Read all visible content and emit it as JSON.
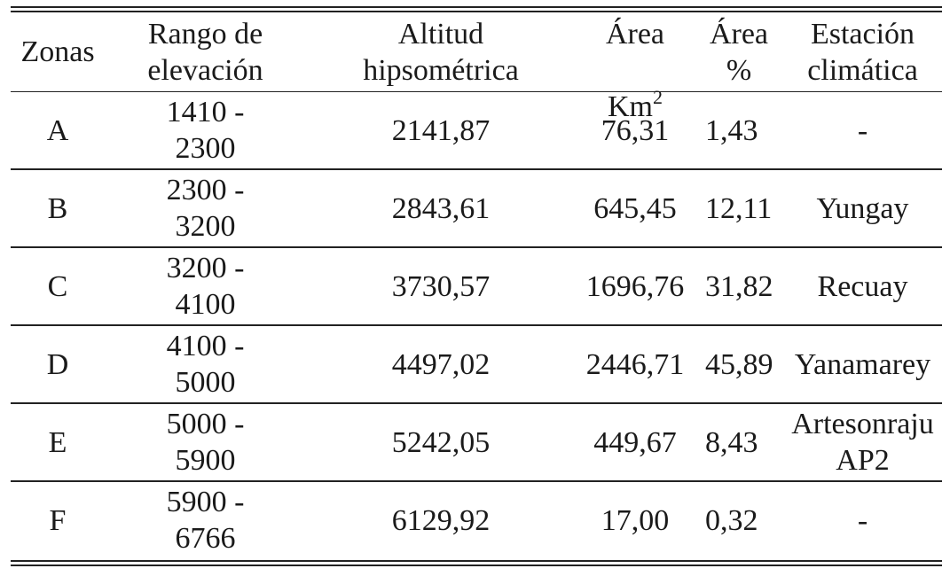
{
  "table": {
    "headers": {
      "zonas": "Zonas",
      "rango": "Rango de\nelevación",
      "altitud": "Altitud\nhipsométrica",
      "area_line1": "Área",
      "area_unit": "Km",
      "area_exp": "2",
      "area_pct": "Área %",
      "estacion": "Estación\nclimática"
    },
    "rows": [
      {
        "zona": "A",
        "rango": "1410 -\n2300",
        "altitud": "2141,87",
        "area": "76,31",
        "pct": "1,43",
        "estacion": "-"
      },
      {
        "zona": "B",
        "rango": "2300 -\n3200",
        "altitud": "2843,61",
        "area": "645,45",
        "pct": "12,11",
        "estacion": "Yungay"
      },
      {
        "zona": "C",
        "rango": "3200 -\n4100",
        "altitud": "3730,57",
        "area": "1696,76",
        "pct": "31,82",
        "estacion": "Recuay"
      },
      {
        "zona": "D",
        "rango": "4100 -\n5000",
        "altitud": "4497,02",
        "area": "2446,71",
        "pct": "45,89",
        "estacion": "Yanamarey"
      },
      {
        "zona": "E",
        "rango": "5000 -\n5900",
        "altitud": "5242,05",
        "area": "449,67",
        "pct": "8,43",
        "estacion": "Artesonraju\nAP2"
      },
      {
        "zona": "F",
        "rango": "5900 -\n6766",
        "altitud": "6129,92",
        "area": "17,00",
        "pct": "0,32",
        "estacion": "-"
      }
    ]
  }
}
